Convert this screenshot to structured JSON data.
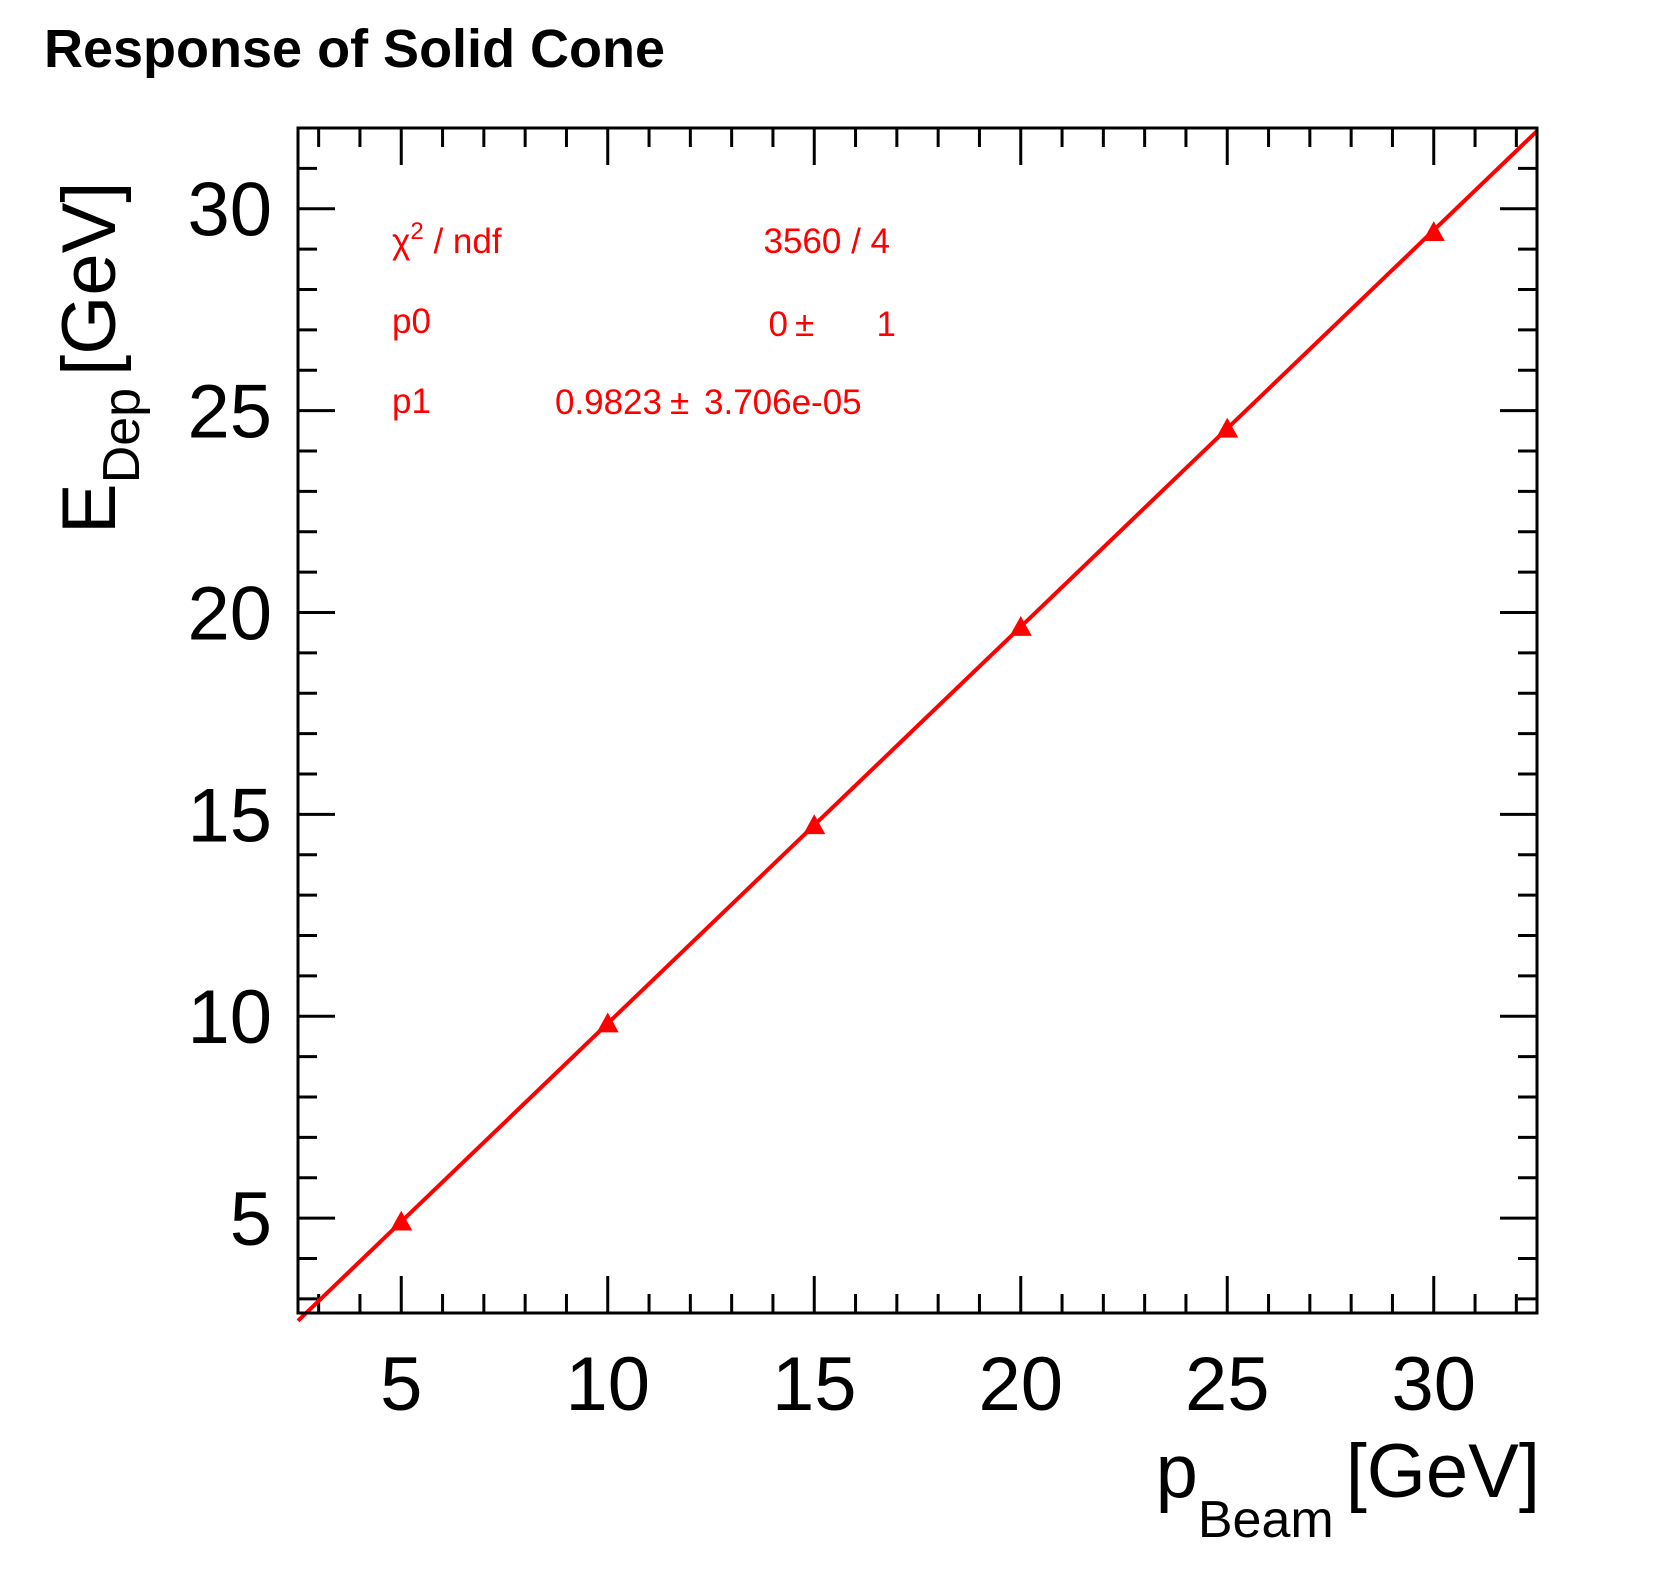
{
  "chart_data": {
    "type": "scatter",
    "title": "Response of Solid Cone",
    "xlabel": {
      "main": "p",
      "sub": "Beam",
      "unit": "[GeV]"
    },
    "ylabel": {
      "main": "E",
      "sub": "Dep",
      "unit": "[GeV]"
    },
    "xlim": [
      2.5,
      32.5
    ],
    "ylim": [
      2.65,
      32.0
    ],
    "xticks": [
      5,
      10,
      15,
      20,
      25,
      30
    ],
    "yticks": [
      5,
      10,
      15,
      20,
      25,
      30
    ],
    "grid": false,
    "legend": "none",
    "color": "#ff0000",
    "series": [
      {
        "marker": "triangle",
        "x": [
          5,
          10,
          15,
          20,
          25,
          30
        ],
        "y": [
          4.91,
          9.82,
          14.73,
          19.64,
          24.55,
          29.42
        ]
      }
    ],
    "fit": {
      "p0": 0,
      "p1": 0.9823,
      "x_range": [
        2.5,
        32.5
      ]
    },
    "stats": {
      "chi2_label": "χ",
      "chi2_sup": "2",
      "chi2_rest": " / ndf",
      "chi2_value": "3560 / 4",
      "p0_label": "p0",
      "p0_value": "0",
      "p0_error": "1",
      "p1_label": "p1",
      "p1_value": "0.9823",
      "p1_error": "3.706e-05",
      "pm": "±"
    }
  }
}
